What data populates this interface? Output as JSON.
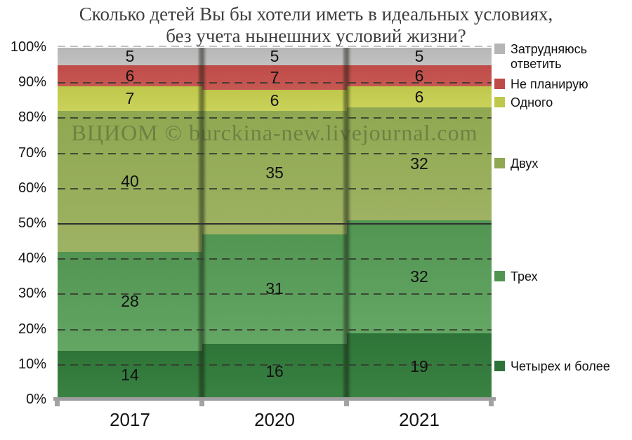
{
  "title": {
    "line1": "Сколько детей Вы бы хотели иметь в идеальных условиях,",
    "line2": "без учета нынешних условий жизни?"
  },
  "watermark": "ВЦИОМ © burckina-new.livejournal.com",
  "chart_data": {
    "type": "bar",
    "subtype": "stacked-percent-column",
    "categories": [
      "2017",
      "2020",
      "2021"
    ],
    "series": [
      {
        "name": "Четырех и более",
        "values": [
          14,
          16,
          19
        ],
        "color": "#2e7438",
        "color_light": "#3a8343"
      },
      {
        "name": "Трех",
        "values": [
          28,
          31,
          32
        ],
        "color": "#529552",
        "color_light": "#64a664"
      },
      {
        "name": "Двух",
        "values": [
          40,
          35,
          32
        ],
        "color": "#8fa851",
        "color_light": "#9eb263"
      },
      {
        "name": "Одного",
        "values": [
          7,
          6,
          6
        ],
        "color": "#bfc84b",
        "color_light": "#cad25a"
      },
      {
        "name": "Не планирую",
        "values": [
          6,
          7,
          6
        ],
        "color": "#bf4b48",
        "color_light": "#c75853"
      },
      {
        "name": "Затрудняюсь ответить",
        "values": [
          5,
          5,
          5
        ],
        "color": "#b6b6b6",
        "color_light": "#c2c2c2"
      }
    ],
    "title": "Сколько детей Вы бы хотели иметь в идеальных условиях, без учета нынешних условий жизни?",
    "xlabel": "",
    "ylabel": "",
    "ylim": [
      0,
      100
    ],
    "y_tick_step": 10,
    "y_tick_suffix": "%",
    "grid": "dashed horizontal every 10%, solid line at 50%, light dashed at 100%",
    "legend_position": "right",
    "colors": {
      "grid_dark": "#343a2e",
      "grid_light": "#c2c2c2",
      "baseline": "#9e9e9e",
      "text": "#111111",
      "title_text": "#3e3e3e"
    }
  }
}
